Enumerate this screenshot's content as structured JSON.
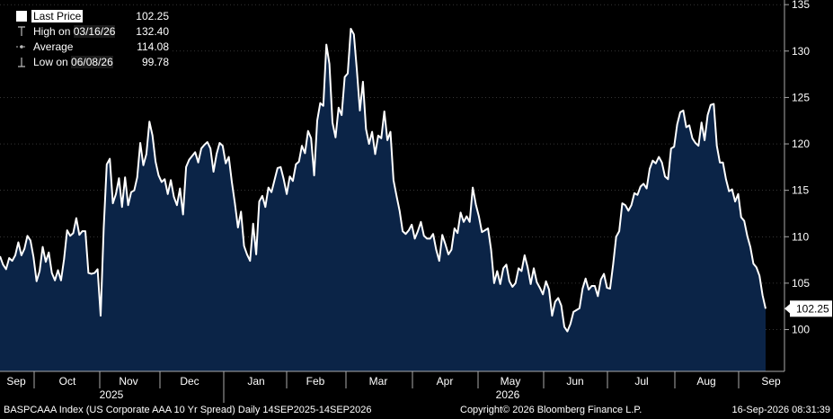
{
  "legend": {
    "last_price_label": "Last Price",
    "last_price_value": "102.25",
    "high_label": "High on",
    "high_date": "03/16/26",
    "high_value": "132.40",
    "average_label": "Average",
    "average_value": "114.08",
    "low_label": "Low on",
    "low_date": "06/08/26",
    "low_value": "99.78"
  },
  "last_value_tag": "102.25",
  "footer": {
    "left": "BASPCAAA Index (US Corporate AAA 10 Yr Spread) Daily 14SEP2025-14SEP2026",
    "center": "Copyright© 2026 Bloomberg Finance L.P.",
    "right": "16-Sep-2026 08:31:39"
  },
  "colors": {
    "background": "#000000",
    "area_fill": "#0b2447",
    "line": "#ffffff",
    "grid": "#555555"
  },
  "chart_data": {
    "type": "area",
    "title": "",
    "ylim": [
      95.5,
      135.5
    ],
    "yticks": [
      100,
      105,
      110,
      115,
      120,
      125,
      130,
      135
    ],
    "grid": true,
    "xaxis": {
      "month_labels": [
        "Sep",
        "Oct",
        "Nov",
        "Dec",
        "Jan",
        "Feb",
        "Mar",
        "Apr",
        "May",
        "Jun",
        "Jul",
        "Aug",
        "Sep"
      ],
      "year_labels": [
        "2025",
        "2026"
      ]
    },
    "series": [
      {
        "name": "Last Price",
        "start_date": "2025-09-14",
        "end_date": "2026-09-14",
        "values": [
          107.9,
          107.0,
          106.5,
          107.7,
          107.4,
          108.0,
          109.4,
          108.0,
          108.7,
          110.1,
          109.6,
          107.8,
          105.2,
          106.3,
          108.9,
          107.3,
          108.3,
          106.1,
          105.3,
          106.4,
          105.3,
          107.6,
          110.7,
          110.1,
          110.4,
          112.0,
          110.2,
          110.6,
          110.6,
          106.1,
          106.0,
          106.1,
          106.5,
          101.5,
          110.9,
          117.8,
          118.4,
          113.6,
          114.6,
          116.3,
          113.2,
          116.4,
          113.4,
          114.8,
          115.0,
          116.4,
          120.1,
          117.7,
          118.9,
          122.4,
          120.9,
          118.1,
          116.6,
          115.9,
          116.2,
          114.6,
          116.1,
          114.3,
          113.4,
          115.2,
          112.4,
          117.5,
          118.3,
          118.7,
          119.1,
          118.0,
          119.5,
          119.9,
          120.2,
          119.5,
          117.0,
          118.9,
          120.1,
          119.8,
          117.9,
          118.6,
          115.9,
          113.6,
          111.0,
          112.7,
          109.0,
          108.1,
          107.4,
          111.4,
          108.1,
          113.8,
          114.4,
          113.2,
          115.3,
          114.8,
          116.1,
          117.4,
          117.5,
          116.2,
          114.6,
          116.5,
          116.0,
          117.8,
          118.1,
          119.8,
          119.0,
          121.4,
          120.6,
          116.6,
          122.5,
          124.4,
          124.1,
          130.7,
          128.6,
          122.3,
          120.7,
          123.9,
          123.1,
          127.2,
          127.6,
          132.4,
          131.8,
          128.0,
          123.6,
          126.7,
          121.6,
          120.0,
          121.3,
          118.9,
          120.9,
          120.6,
          123.5,
          120.4,
          121.3,
          116.1,
          114.4,
          112.8,
          110.6,
          110.3,
          110.7,
          111.3,
          109.8,
          110.6,
          111.6,
          110.1,
          109.8,
          109.8,
          110.3,
          108.6,
          107.4,
          110.2,
          109.2,
          108.1,
          108.6,
          110.9,
          110.4,
          112.6,
          111.6,
          112.2,
          111.6,
          115.3,
          113.5,
          112.2,
          110.5,
          110.7,
          110.9,
          108.6,
          105.0,
          106.3,
          104.9,
          106.6,
          107.0,
          105.2,
          104.6,
          105.0,
          106.6,
          106.3,
          108.0,
          106.7,
          104.9,
          106.6,
          105.1,
          104.5,
          103.8,
          105.2,
          104.3,
          101.5,
          103.0,
          103.4,
          102.6,
          100.3,
          99.8,
          100.6,
          101.9,
          102.1,
          102.3,
          104.4,
          105.5,
          104.3,
          104.7,
          104.7,
          103.6,
          105.4,
          106.0,
          104.5,
          104.4,
          107.0,
          110.0,
          110.6,
          113.6,
          113.4,
          112.8,
          113.4,
          114.7,
          114.5,
          115.4,
          115.7,
          115.2,
          117.3,
          118.2,
          117.9,
          118.6,
          118.0,
          116.5,
          116.2,
          119.5,
          119.7,
          122.1,
          123.4,
          123.6,
          121.8,
          122.0,
          120.6,
          120.1,
          119.8,
          122.3,
          120.4,
          123.1,
          124.2,
          124.3,
          119.8,
          118.0,
          118.0,
          116.2,
          114.9,
          115.1,
          113.8,
          114.6,
          112.1,
          111.7,
          110.1,
          108.9,
          107.1,
          106.7,
          105.8,
          103.7,
          102.25
        ]
      }
    ]
  }
}
